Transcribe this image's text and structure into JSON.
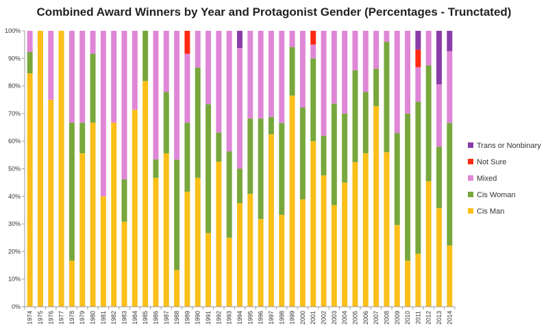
{
  "chart_data": {
    "type": "bar",
    "stacked": true,
    "title": "Combined Award Winners by Year and Protagonist Gender (Percentages - Trunctated)",
    "xlabel": "",
    "ylabel": "",
    "ylim": [
      0,
      100
    ],
    "y_ticks": [
      "0%",
      "10%",
      "20%",
      "30%",
      "40%",
      "50%",
      "60%",
      "70%",
      "80%",
      "90%",
      "100%"
    ],
    "grid": false,
    "legend_position": "right",
    "categories": [
      "1974",
      "1975",
      "1976",
      "1977",
      "1978",
      "1979",
      "1980",
      "1981",
      "1982",
      "1983",
      "1984",
      "1985",
      "1986",
      "1987",
      "1988",
      "1989",
      "1990",
      "1991",
      "1992",
      "1993",
      "1994",
      "1995",
      "1996",
      "1997",
      "1998",
      "1999",
      "2000",
      "2001",
      "2002",
      "2003",
      "2004",
      "2005",
      "2006",
      "2007",
      "2008",
      "2009",
      "2010",
      "2011",
      "2012",
      "2013",
      "2014"
    ],
    "series": [
      {
        "name": "Cis Man",
        "color": "#fbbf1a",
        "values": [
          84.6,
          100,
          75,
          100,
          16.7,
          55.6,
          66.7,
          40,
          66.7,
          30.8,
          71.4,
          81.8,
          46.7,
          55.6,
          13.3,
          41.7,
          46.7,
          26.7,
          52.6,
          25,
          37.5,
          40.9,
          31.8,
          62.5,
          33.3,
          76.5,
          38.9,
          60,
          47.6,
          36.8,
          45,
          52.4,
          55.6,
          72.7,
          56,
          29.6,
          16.7,
          19.2,
          45.5,
          35.7,
          22.2
        ]
      },
      {
        "name": "Cis Woman",
        "color": "#78a73d",
        "values": [
          7.7,
          0,
          0,
          0,
          50,
          11.1,
          25,
          0,
          0,
          15.4,
          0,
          18.2,
          6.7,
          22.2,
          40,
          25,
          40,
          46.7,
          10.5,
          31.3,
          12.5,
          27.3,
          36.4,
          6.3,
          33.3,
          17.6,
          33.3,
          30,
          14.3,
          36.8,
          25,
          33.3,
          22.2,
          13.6,
          40,
          33.3,
          53.3,
          55.1,
          42,
          22.3,
          44.4
        ]
      },
      {
        "name": "Mixed",
        "color": "#df87d6",
        "values": [
          7.7,
          0,
          25,
          0,
          33.3,
          33.3,
          8.3,
          60,
          33.3,
          53.8,
          28.6,
          0,
          46.6,
          22.2,
          46.7,
          25,
          13.3,
          26.6,
          36.9,
          43.7,
          43.8,
          31.8,
          31.8,
          31.2,
          33.4,
          5.9,
          27.8,
          5,
          38.1,
          26.4,
          30,
          14.3,
          22.2,
          13.7,
          4,
          37.1,
          30,
          12.5,
          12.5,
          22.6,
          26
        ]
      },
      {
        "name": "Not Sure",
        "color": "#ff2a12",
        "values": [
          0,
          0,
          0,
          0,
          0,
          0,
          0,
          0,
          0,
          0,
          0,
          0,
          0,
          0,
          0,
          8.3,
          0,
          0,
          0,
          0,
          0,
          0,
          0,
          0,
          0,
          0,
          0,
          5,
          0,
          0,
          0,
          0,
          0,
          0,
          0,
          0,
          0,
          6.4,
          0,
          0,
          0
        ]
      },
      {
        "name": "Trans or Nonbinary",
        "color": "#8a3ca8",
        "values": [
          0,
          0,
          0,
          0,
          0,
          0,
          0,
          0,
          0,
          0,
          0,
          0,
          0,
          0,
          0,
          0,
          0,
          0,
          0,
          0,
          6.2,
          0,
          0,
          0,
          0,
          0,
          0,
          0,
          0,
          0,
          0,
          0,
          0,
          0,
          0,
          0,
          0,
          6.8,
          0,
          19.4,
          7.4
        ]
      }
    ],
    "legend_order": [
      "Trans or Nonbinary",
      "Not Sure",
      "Mixed",
      "Cis Woman",
      "Cis Man"
    ]
  }
}
